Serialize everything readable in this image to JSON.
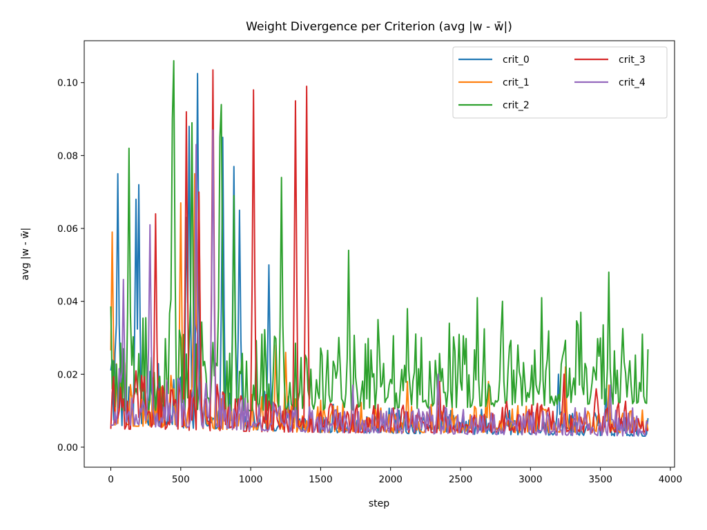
{
  "chart_data": {
    "type": "line",
    "title": "Weight Divergence per Criterion (avg |w - w̄|)",
    "xlabel": "step",
    "ylabel": "avg |w - w̄|",
    "xlim": [
      -190,
      4030
    ],
    "ylim": [
      -0.0055,
      0.1115
    ],
    "xticks": [
      0,
      500,
      1000,
      1500,
      2000,
      2500,
      3000,
      3500,
      4000
    ],
    "xtick_labels": [
      "0",
      "500",
      "1000",
      "1500",
      "2000",
      "2500",
      "3000",
      "3500",
      "4000"
    ],
    "yticks": [
      0.0,
      0.02,
      0.04,
      0.06,
      0.08,
      0.1
    ],
    "ytick_labels": [
      "0.00",
      "0.02",
      "0.04",
      "0.06",
      "0.08",
      "0.10"
    ],
    "grid": false,
    "legend_position": "top-right",
    "legend_columns": 2,
    "x_end": 3840,
    "x_step": 10,
    "series": [
      {
        "name": "crit_0",
        "color": "#1f77b4",
        "profile": [
          [
            0,
            0.006
          ],
          [
            1450,
            0.004
          ],
          [
            3840,
            0.003
          ]
        ],
        "noise": [
          [
            0,
            0.022
          ],
          [
            1450,
            0.008
          ],
          [
            3840,
            0.006
          ]
        ],
        "peaks": [
          [
            50,
            0.075
          ],
          [
            200,
            0.072
          ],
          [
            180,
            0.068
          ],
          [
            540,
            0.063
          ],
          [
            620,
            0.1025
          ],
          [
            560,
            0.088
          ],
          [
            800,
            0.085
          ],
          [
            880,
            0.077
          ],
          [
            920,
            0.065
          ],
          [
            1130,
            0.05
          ],
          [
            3200,
            0.02
          ],
          [
            3540,
            0.016
          ]
        ]
      },
      {
        "name": "crit_1",
        "color": "#ff7f0e",
        "profile": [
          [
            0,
            0.006
          ],
          [
            1450,
            0.004
          ],
          [
            3840,
            0.004
          ]
        ],
        "noise": [
          [
            0,
            0.02
          ],
          [
            1450,
            0.009
          ],
          [
            3840,
            0.007
          ]
        ],
        "peaks": [
          [
            10,
            0.059
          ],
          [
            500,
            0.067
          ],
          [
            600,
            0.075
          ],
          [
            630,
            0.069
          ],
          [
            1180,
            0.028
          ],
          [
            1250,
            0.026
          ],
          [
            2120,
            0.018
          ],
          [
            2700,
            0.018
          ],
          [
            3250,
            0.022
          ],
          [
            3560,
            0.017
          ]
        ]
      },
      {
        "name": "crit_2",
        "color": "#2ca02c",
        "profile": [
          [
            0,
            0.01
          ],
          [
            1450,
            0.01
          ],
          [
            3840,
            0.012
          ]
        ],
        "noise": [
          [
            0,
            0.03
          ],
          [
            1450,
            0.02
          ],
          [
            3840,
            0.024
          ]
        ],
        "peaks": [
          [
            130,
            0.082
          ],
          [
            440,
            0.09
          ],
          [
            450,
            0.106
          ],
          [
            580,
            0.089
          ],
          [
            780,
            0.085
          ],
          [
            790,
            0.094
          ],
          [
            880,
            0.069
          ],
          [
            1220,
            0.074
          ],
          [
            1700,
            0.054
          ],
          [
            1910,
            0.035
          ],
          [
            2120,
            0.038
          ],
          [
            2420,
            0.034
          ],
          [
            2620,
            0.041
          ],
          [
            2800,
            0.04
          ],
          [
            3080,
            0.041
          ],
          [
            3360,
            0.037
          ],
          [
            3560,
            0.048
          ],
          [
            3800,
            0.031
          ]
        ]
      },
      {
        "name": "crit_3",
        "color": "#d62728",
        "profile": [
          [
            0,
            0.005
          ],
          [
            1450,
            0.004
          ],
          [
            3840,
            0.004
          ]
        ],
        "noise": [
          [
            0,
            0.018
          ],
          [
            1450,
            0.008
          ],
          [
            3840,
            0.009
          ]
        ],
        "peaks": [
          [
            320,
            0.064
          ],
          [
            540,
            0.092
          ],
          [
            630,
            0.07
          ],
          [
            730,
            0.1035
          ],
          [
            1020,
            0.098
          ],
          [
            1320,
            0.095
          ],
          [
            1400,
            0.099
          ],
          [
            2350,
            0.018
          ],
          [
            3240,
            0.02
          ],
          [
            3470,
            0.016
          ]
        ]
      },
      {
        "name": "crit_4",
        "color": "#9467bd",
        "profile": [
          [
            0,
            0.006
          ],
          [
            1450,
            0.004
          ],
          [
            3840,
            0.003
          ]
        ],
        "noise": [
          [
            0,
            0.018
          ],
          [
            1450,
            0.007
          ],
          [
            3840,
            0.008
          ]
        ],
        "peaks": [
          [
            90,
            0.046
          ],
          [
            280,
            0.061
          ],
          [
            610,
            0.083
          ],
          [
            730,
            0.087
          ],
          [
            1730,
            0.017
          ],
          [
            2340,
            0.02
          ],
          [
            3570,
            0.017
          ]
        ]
      }
    ]
  }
}
